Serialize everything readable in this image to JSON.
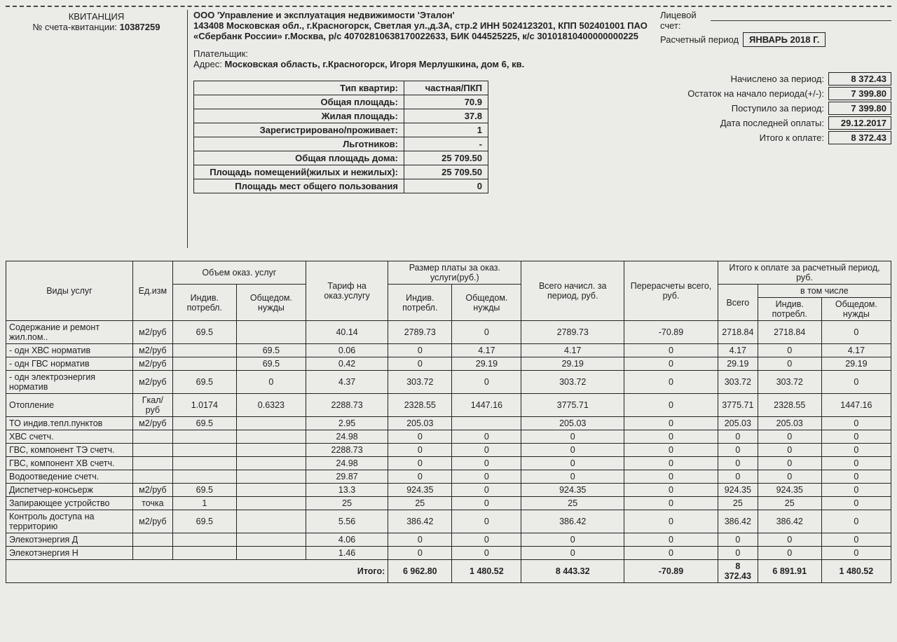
{
  "header": {
    "receipt_title": "КВИТАНЦИЯ",
    "receipt_num_label": "№ счета-квитанции:",
    "receipt_num": "10387259",
    "org_line1": "ООО 'Управление и эксплуатация недвижимости 'Эталон'",
    "org_line2": "143408 Московская обл., г.Красногорск, Светлая ул.,д.3А, стр.2 ИНН 5024123201, КПП 502401001 ПАО «Сбербанк России» г.Москва, р/с 40702810638170022633, БИК 044525225, к/с 30101810400000000225",
    "payer_label": "Плательщик:",
    "addr_label": "Адрес:",
    "addr": "Московская область, г.Красногорск, Игоря Мерлушкина, дом 6, кв.",
    "acct_label": "Лицевой счет:",
    "period_label": "Расчетный период",
    "period_value": "ЯНВАРЬ 2018 Г."
  },
  "summary": {
    "rows": [
      {
        "label": "Начислено за период:",
        "value": "8 372.43"
      },
      {
        "label": "Остаток на начало периода(+/-):",
        "value": "7 399.80"
      },
      {
        "label": "Поступило за период:",
        "value": "7 399.80"
      },
      {
        "label": "Дата последней оплаты:",
        "value": "29.12.2017"
      },
      {
        "label": "Итого к оплате:",
        "value": "8 372.43"
      }
    ]
  },
  "apartment": {
    "rows": [
      {
        "label": "Тип квартир:",
        "value": "частная/ПКП"
      },
      {
        "label": "Общая площадь:",
        "value": "70.9"
      },
      {
        "label": "Жилая площадь:",
        "value": "37.8"
      },
      {
        "label": "Зарегистрировано/проживает:",
        "value": "1"
      },
      {
        "label": "Льготников:",
        "value": "-"
      },
      {
        "label": "Общая площадь дома:",
        "value": "25 709.50"
      },
      {
        "label": "Площадь помещений(жилых и нежилых):",
        "value": "25 709.50"
      },
      {
        "label": "Площадь мест общего пользования",
        "value": "0"
      }
    ]
  },
  "services": {
    "headers": {
      "name": "Виды услуг",
      "unit": "Ед.изм",
      "volume": "Объем оказ. услуг",
      "vol_ind": "Индив. потребл.",
      "vol_com": "Общедом. нужды",
      "tariff": "Тариф на оказ.услугу",
      "pay": "Размер платы за оказ. услуги(руб.)",
      "pay_ind": "Индив. потребл.",
      "pay_com": "Общедом. нужды",
      "accrued": "Всего начисл. за период, руб.",
      "recalc": "Перерасчеты всего, руб.",
      "due": "Итого к оплате за расчетный период, руб.",
      "due_total": "Всего",
      "due_incl": "в том числе",
      "due_ind": "Индив. потребл.",
      "due_com": "Общедом. нужды"
    },
    "rows": [
      {
        "name": "Содержание и ремонт жил.пом..",
        "unit": "м2/руб",
        "vi": "69.5",
        "vc": "",
        "tariff": "40.14",
        "pi": "2789.73",
        "pc": "0",
        "acc": "2789.73",
        "rec": "-70.89",
        "dt": "2718.84",
        "di": "2718.84",
        "dc": "0"
      },
      {
        "name": "- одн ХВС норматив",
        "unit": "м2/руб",
        "vi": "",
        "vc": "69.5",
        "tariff": "0.06",
        "pi": "0",
        "pc": "4.17",
        "acc": "4.17",
        "rec": "0",
        "dt": "4.17",
        "di": "0",
        "dc": "4.17"
      },
      {
        "name": "- одн ГВС норматив",
        "unit": "м2/руб",
        "vi": "",
        "vc": "69.5",
        "tariff": "0.42",
        "pi": "0",
        "pc": "29.19",
        "acc": "29.19",
        "rec": "0",
        "dt": "29.19",
        "di": "0",
        "dc": "29.19"
      },
      {
        "name": "- одн электроэнергия норматив",
        "unit": "м2/руб",
        "vi": "69.5",
        "vc": "0",
        "tariff": "4.37",
        "pi": "303.72",
        "pc": "0",
        "acc": "303.72",
        "rec": "0",
        "dt": "303.72",
        "di": "303.72",
        "dc": "0"
      },
      {
        "name": "Отопление",
        "unit": "Гкал/руб",
        "vi": "1.0174",
        "vc": "0.6323",
        "tariff": "2288.73",
        "pi": "2328.55",
        "pc": "1447.16",
        "acc": "3775.71",
        "rec": "0",
        "dt": "3775.71",
        "di": "2328.55",
        "dc": "1447.16"
      },
      {
        "name": "ТО индив.тепл.пунктов",
        "unit": "м2/руб",
        "vi": "69.5",
        "vc": "",
        "tariff": "2.95",
        "pi": "205.03",
        "pc": "",
        "acc": "205.03",
        "rec": "0",
        "dt": "205.03",
        "di": "205.03",
        "dc": "0"
      },
      {
        "name": "ХВС счетч.",
        "unit": "",
        "vi": "",
        "vc": "",
        "tariff": "24.98",
        "pi": "0",
        "pc": "0",
        "acc": "0",
        "rec": "0",
        "dt": "0",
        "di": "0",
        "dc": "0"
      },
      {
        "name": "ГВС, компонент ТЭ счетч.",
        "unit": "",
        "vi": "",
        "vc": "",
        "tariff": "2288.73",
        "pi": "0",
        "pc": "0",
        "acc": "0",
        "rec": "0",
        "dt": "0",
        "di": "0",
        "dc": "0"
      },
      {
        "name": "ГВС, компонент ХВ счетч.",
        "unit": "",
        "vi": "",
        "vc": "",
        "tariff": "24.98",
        "pi": "0",
        "pc": "0",
        "acc": "0",
        "rec": "0",
        "dt": "0",
        "di": "0",
        "dc": "0"
      },
      {
        "name": "Водоотведение счетч.",
        "unit": "",
        "vi": "",
        "vc": "",
        "tariff": "29.87",
        "pi": "0",
        "pc": "0",
        "acc": "0",
        "rec": "0",
        "dt": "0",
        "di": "0",
        "dc": "0"
      },
      {
        "name": "Диспетчер-консьерж",
        "unit": "м2/руб",
        "vi": "69.5",
        "vc": "",
        "tariff": "13.3",
        "pi": "924.35",
        "pc": "0",
        "acc": "924.35",
        "rec": "0",
        "dt": "924.35",
        "di": "924.35",
        "dc": "0"
      },
      {
        "name": "Запирающее устройство",
        "unit": "точка",
        "vi": "1",
        "vc": "",
        "tariff": "25",
        "pi": "25",
        "pc": "0",
        "acc": "25",
        "rec": "0",
        "dt": "25",
        "di": "25",
        "dc": "0"
      },
      {
        "name": "Контроль доступа на территорию",
        "unit": "м2/руб",
        "vi": "69.5",
        "vc": "",
        "tariff": "5.56",
        "pi": "386.42",
        "pc": "0",
        "acc": "386.42",
        "rec": "0",
        "dt": "386.42",
        "di": "386.42",
        "dc": "0"
      },
      {
        "name": "Элекотэнергия Д",
        "unit": "",
        "vi": "",
        "vc": "",
        "tariff": "4.06",
        "pi": "0",
        "pc": "0",
        "acc": "0",
        "rec": "0",
        "dt": "0",
        "di": "0",
        "dc": "0"
      },
      {
        "name": "Элекотэнергия Н",
        "unit": "",
        "vi": "",
        "vc": "",
        "tariff": "1.46",
        "pi": "0",
        "pc": "0",
        "acc": "0",
        "rec": "0",
        "dt": "0",
        "di": "0",
        "dc": "0"
      }
    ],
    "total": {
      "label": "Итого:",
      "pi": "6 962.80",
      "pc": "1 480.52",
      "acc": "8 443.32",
      "rec": "-70.89",
      "dt": "8 372.43",
      "di": "6 891.91",
      "dc": "1 480.52"
    }
  }
}
